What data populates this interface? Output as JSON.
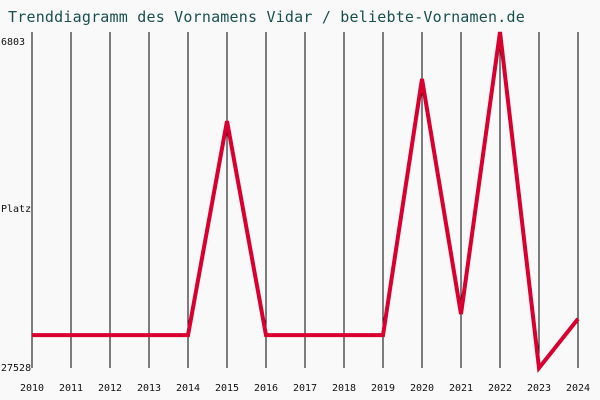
{
  "chart_data": {
    "type": "line",
    "title": "Trenddiagramm des Vornamens Vidar / beliebte-Vornamen.de",
    "ylabel": "Platz",
    "y_top_label": "6803",
    "y_bottom_label": "27528",
    "ylim": [
      6803,
      27528
    ],
    "y_inverted": true,
    "grid_vertical": true,
    "x": [
      2010,
      2011,
      2012,
      2013,
      2014,
      2015,
      2016,
      2017,
      2018,
      2019,
      2020,
      2021,
      2022,
      2023,
      2024
    ],
    "series": [
      {
        "color": "#d9002f",
        "values": [
          25500,
          25500,
          25500,
          25500,
          25500,
          12300,
          25500,
          25500,
          25500,
          25500,
          9700,
          24200,
          6803,
          27528,
          24500
        ]
      }
    ]
  }
}
